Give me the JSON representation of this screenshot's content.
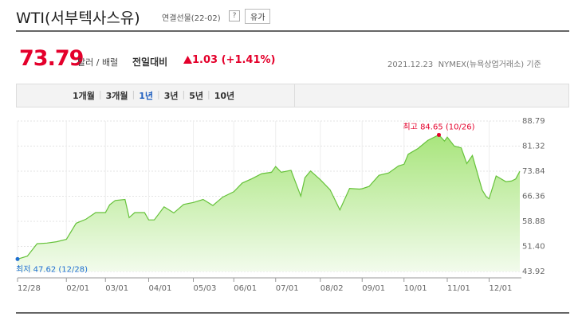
{
  "header": {
    "title": "WTI(서부텍사스유)",
    "subtitle": "연결선물(22-02)",
    "help": "?",
    "button": "유가"
  },
  "price": {
    "value": "73.79",
    "unit": "달러 / 배럴",
    "compare_label": "전일대비",
    "change": "1.03",
    "change_pct": "(+1.41%)",
    "date": "2021.12.23",
    "source": "NYMEX(뉴욕상업거래소) 기준"
  },
  "tabs": {
    "items": [
      "1개월",
      "3개월",
      "1년",
      "3년",
      "5년",
      "10년"
    ],
    "active": 2
  },
  "chart_data": {
    "type": "area",
    "color": "#66c23a",
    "x": [
      0,
      7,
      14,
      21,
      28,
      35,
      42,
      49,
      56,
      63,
      66,
      70,
      77,
      80,
      84,
      91,
      94,
      98,
      105,
      112,
      119,
      126,
      133,
      140,
      147,
      155,
      161,
      168,
      175,
      182,
      185,
      189,
      196,
      203,
      206,
      210,
      217,
      224,
      231,
      238,
      245,
      247,
      252,
      259,
      266,
      273,
      277,
      280,
      287,
      294,
      302,
      306,
      308,
      313,
      318,
      322,
      326,
      333,
      336,
      338,
      343,
      350,
      354,
      357,
      360
    ],
    "values": [
      47.62,
      48.5,
      52.2,
      52.4,
      52.8,
      53.5,
      58.3,
      59.5,
      61.5,
      61.5,
      63.8,
      65.1,
      65.4,
      60.0,
      61.5,
      61.5,
      59.3,
      59.3,
      63.2,
      61.4,
      63.9,
      64.5,
      65.4,
      63.6,
      66.1,
      67.7,
      70.3,
      71.6,
      73.1,
      73.5,
      75.2,
      73.5,
      74.1,
      66.4,
      71.9,
      73.9,
      71.3,
      68.3,
      62.3,
      68.7,
      68.5,
      68.6,
      69.3,
      72.6,
      73.3,
      75.4,
      75.9,
      78.9,
      80.6,
      83.0,
      84.65,
      82.8,
      84.0,
      81.3,
      80.8,
      76.1,
      78.5,
      68.2,
      66.2,
      65.6,
      72.4,
      70.7,
      70.9,
      71.5,
      73.79
    ],
    "xlim": [
      0,
      360
    ],
    "xticks": [
      {
        "value": 0,
        "label": "12/28"
      },
      {
        "value": 35,
        "label": "02/01"
      },
      {
        "value": 63,
        "label": "03/01"
      },
      {
        "value": 94,
        "label": "04/01"
      },
      {
        "value": 126,
        "label": "05/03"
      },
      {
        "value": 155,
        "label": "06/01"
      },
      {
        "value": 185,
        "label": "07/01"
      },
      {
        "value": 217,
        "label": "08/02"
      },
      {
        "value": 247,
        "label": "09/01"
      },
      {
        "value": 277,
        "label": "10/01"
      },
      {
        "value": 308,
        "label": "11/01"
      },
      {
        "value": 338,
        "label": "12/01"
      }
    ],
    "ylim": [
      43.92,
      88.79
    ],
    "yticks": [
      43.92,
      {
        "value": 51.4,
        "label": "51.40"
      },
      58.88,
      66.36,
      73.84,
      81.32,
      88.79
    ],
    "grid": true,
    "annotations": [
      "최고 84.65 (10/26)",
      "최저 47.62 (12/28)"
    ]
  }
}
